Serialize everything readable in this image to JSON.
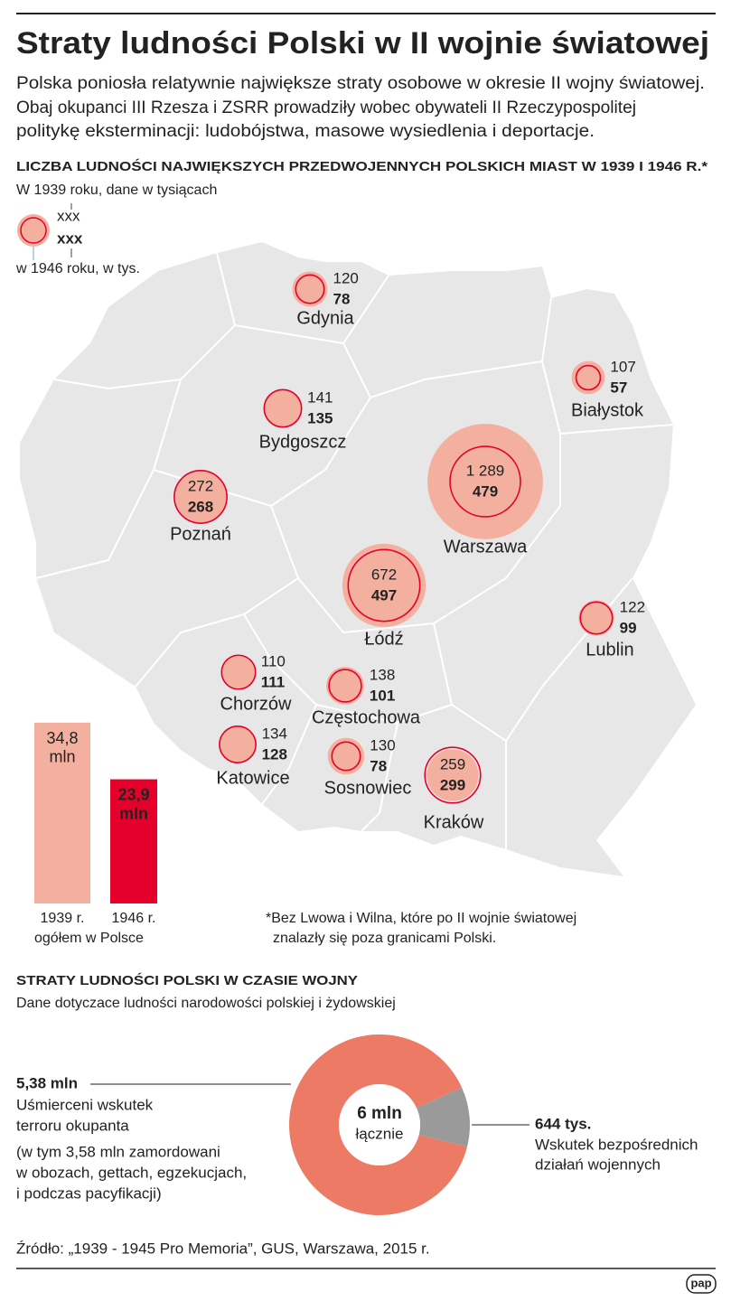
{
  "title": "Straty ludności Polski w II wojnie światowej",
  "intro": [
    "Polska poniosła relatywnie największe straty osobowe w okresie II wojny światowej.",
    "Obaj okupanci III Rzesza i ZSRR prowadziły wobec obywateli II Rzeczypospolitej",
    "politykę eksterminacji: ludobójstwa, masowe wysiedlenia i deportacje."
  ],
  "chart_data": [
    {
      "type": "bubble-map",
      "title": "LICZBA LUDNOŚCI NAJWIĘKSZYCH PRZEDWOJENNYCH POLSKICH MIAST W 1939 I 1946 R.*",
      "legend_sample": [
        "xxx",
        "xxx"
      ],
      "categories": [
        "Gdynia",
        "Białystok",
        "Bydgoszcz",
        "Warszawa",
        "Poznań",
        "Łódź",
        "Lublin",
        "Chorzów",
        "Częstochowa",
        "Katowice",
        "Sosnowiec",
        "Kraków"
      ],
      "series": [
        {
          "name": "W 1939 roku, dane w tysiącach",
          "color": "#f4b09e",
          "values": [
            120,
            107,
            141,
            1289,
            272,
            672,
            122,
            110,
            138,
            134,
            130,
            259
          ],
          "value_labels": [
            "120",
            "107",
            "141",
            "1 289",
            "272",
            "672",
            "122",
            "110",
            "138",
            "134",
            "130",
            "259"
          ]
        },
        {
          "name": "w 1946 roku, w tys.",
          "color": "#e4002b",
          "values": [
            78,
            57,
            135,
            479,
            268,
            497,
            99,
            111,
            101,
            128,
            78,
            299
          ]
        }
      ],
      "footnote": [
        "*Bez Lwowa i Wilna, które po II wojnie światowej",
        "znalazły się poza granicami Polski."
      ]
    },
    {
      "type": "bar",
      "categories": [
        "1939 r.",
        "1946 r."
      ],
      "values": [
        34.8,
        23.9
      ],
      "value_labels": [
        "34,8 mln",
        "23,9 mln"
      ],
      "colors": [
        "#f4b09e",
        "#e4002b"
      ],
      "caption": "ogółem w Polsce"
    },
    {
      "type": "donut",
      "title": "STRATY LUDNOŚCI POLSKI W CZASIE WOJNY",
      "subtitle": "Dane dotyczace ludności narodowości polskiej i żydowskiej",
      "center_label": [
        "6 mln",
        "łącznie"
      ],
      "values": [
        5.38,
        0.644
      ],
      "value_labels": [
        "5,38 mln",
        "644 tys."
      ],
      "colors": [
        "#ec7a64",
        "#9a9a9a"
      ],
      "descriptions": [
        [
          "Uśmierceni wskutek",
          "terroru okupanta"
        ],
        [
          "Wskutek bezpośrednich",
          "działań wojennych"
        ]
      ],
      "note": [
        "(w tym 3,58 mln zamordowani",
        "w obozach, gettach, egzekucjach,",
        "i podczas pacyfikacji)"
      ]
    }
  ],
  "source": "Źródło: „1939 - 1945 Pro Memoria”, GUS, Warszawa, 2015 r.",
  "logo": "pap"
}
